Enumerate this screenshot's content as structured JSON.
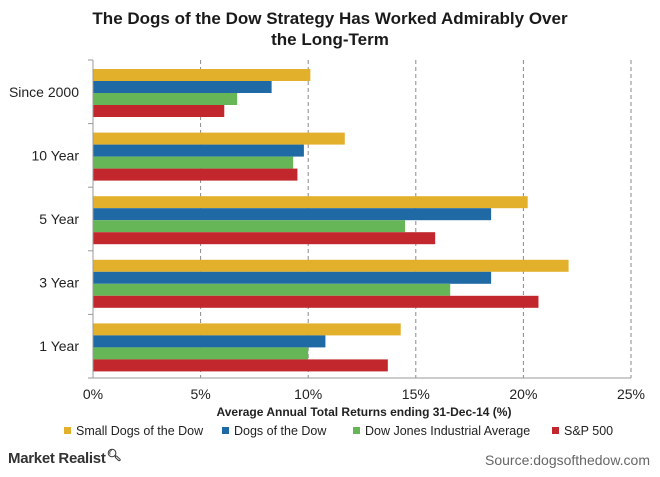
{
  "chart_data": {
    "type": "bar",
    "orientation": "horizontal",
    "title": "The Dogs of the Dow Strategy Has Worked Admirably Over the Long-Term",
    "title_lines": [
      "The Dogs of the Dow Strategy  Has Worked Admirably  Over",
      "the Long-Term"
    ],
    "xlabel": "Average Annual Total Returns ending 31-Dec-14 (%)",
    "ylabel": "",
    "xlim": [
      0,
      25
    ],
    "xticks": [
      0,
      5,
      10,
      15,
      20,
      25
    ],
    "xtick_labels": [
      "0%",
      "5%",
      "10%",
      "15%",
      "20%",
      "25%"
    ],
    "grid": "vertical dashed",
    "legend_position": "bottom",
    "categories": [
      "Since 2000",
      "10 Year",
      "5 Year",
      "3 Year",
      "1 Year"
    ],
    "series": [
      {
        "name": "Small Dogs of the Dow",
        "color": "#e3b02b",
        "values": [
          10.1,
          11.7,
          20.2,
          22.1,
          14.3
        ]
      },
      {
        "name": "Dogs of the Dow",
        "color": "#1f6aa5",
        "values": [
          8.3,
          9.8,
          18.5,
          18.5,
          10.8
        ]
      },
      {
        "name": "Dow Jones Industrial Average",
        "color": "#66b556",
        "values": [
          6.7,
          9.3,
          14.5,
          16.6,
          10.0
        ]
      },
      {
        "name": "S&P 500",
        "color": "#c1272d",
        "values": [
          6.1,
          9.5,
          15.9,
          20.7,
          13.7
        ]
      }
    ]
  },
  "footer": {
    "brand": "Market Realist",
    "brand_icon": "magnifier-icon",
    "source": "Source:dogsofthedow.com"
  }
}
